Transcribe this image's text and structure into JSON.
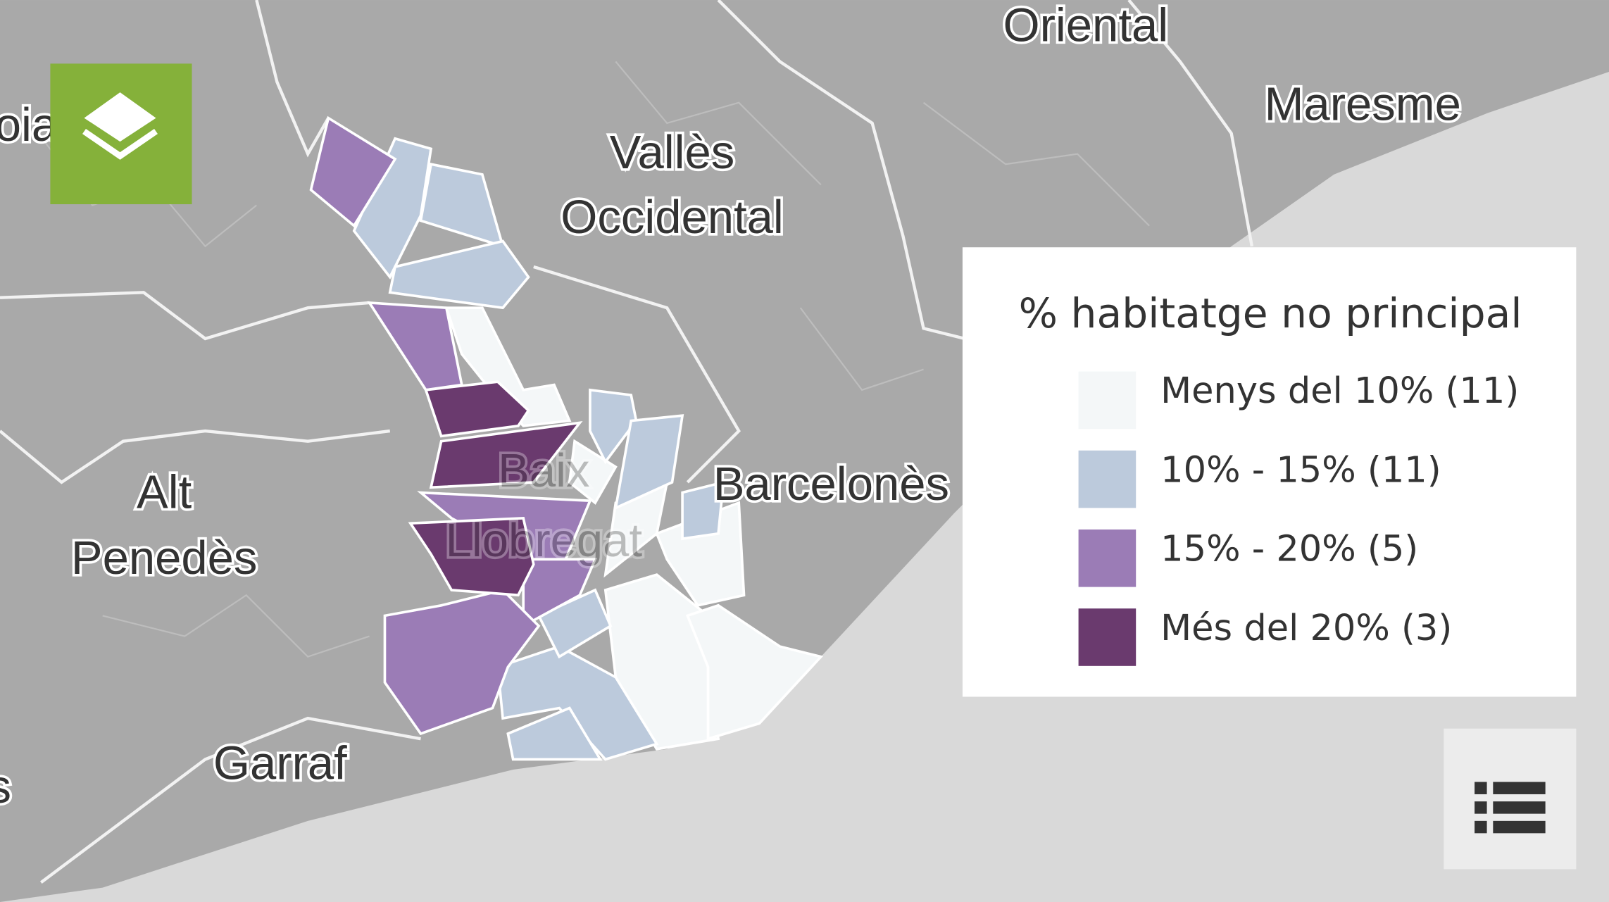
{
  "map": {
    "labels": [
      "Oriental",
      "Maresme",
      "Vallès",
      "Occidental",
      "Alt",
      "Penedès",
      "Garraf",
      "Barcelonès",
      "Baix",
      "Llobregat",
      "oia",
      "s"
    ],
    "legend": {
      "title": "% habitatge no principal",
      "items": [
        {
          "label": "Menys del 10% (11)",
          "color": "#f4f7f8"
        },
        {
          "label": "10% - 15% (11)",
          "color": "#bccadc"
        },
        {
          "label": "15% - 20% (5)",
          "color": "#9b7cb6"
        },
        {
          "label": "Més del 20% (3)",
          "color": "#6a3a6e"
        }
      ]
    }
  }
}
